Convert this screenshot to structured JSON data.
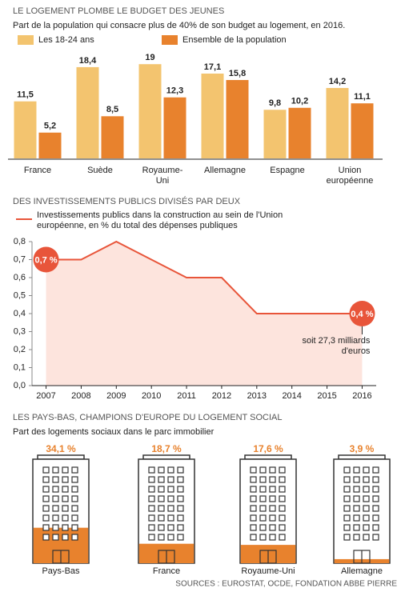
{
  "chart_data": [
    {
      "type": "bar",
      "title": "LE LOGEMENT PLOMBE LE BUDGET DES JEUNES",
      "subtitle": "Part de la population qui consacre plus de 40% de son budget au logement, en 2016.",
      "categories": [
        "France",
        "Suède",
        "Royaume-Uni",
        "Allemagne",
        "Espagne",
        "Union européenne"
      ],
      "series": [
        {
          "name": "Les 18-24 ans",
          "color": "#f3c46f",
          "values": [
            11.5,
            18.4,
            19,
            17.1,
            9.8,
            14.2
          ],
          "value_labels": [
            "11,5",
            "18,4",
            "19",
            "17,1",
            "9,8",
            "14,2"
          ]
        },
        {
          "name": "Ensemble de la population",
          "color": "#e8822d",
          "values": [
            5.2,
            8.5,
            12.3,
            15.8,
            10.2,
            11.1
          ],
          "value_labels": [
            "5,2",
            "8,5",
            "12,3",
            "15,8",
            "10,2",
            "11,1"
          ]
        }
      ]
    },
    {
      "type": "line",
      "title": "DES INVESTISSEMENTS PUBLICS DIVISÉS PAR DEUX",
      "x": [
        2007,
        2008,
        2009,
        2010,
        2011,
        2012,
        2013,
        2014,
        2015,
        2016
      ],
      "xticks": [
        2007,
        2008,
        2009,
        2010,
        2011,
        2012,
        2013,
        2014,
        2015,
        2016
      ],
      "xlim": [
        2006.6,
        2016.4
      ],
      "series": [
        {
          "name": "Investissements publics dans la construction au sein de l'Union européenne, en % du total des dépenses publiques",
          "color": "#e8553a",
          "area_color": "#fde4dd",
          "values": [
            0.7,
            0.7,
            0.8,
            0.7,
            0.6,
            0.6,
            0.4,
            0.4,
            0.4,
            0.4
          ],
          "value_labels": [
            "0,7 %",
            null,
            null,
            null,
            null,
            null,
            null,
            null,
            null,
            "0,4 %"
          ]
        }
      ],
      "ylim": [
        0,
        0.8
      ],
      "yticks": [
        {
          "value": 0,
          "label": "0,0"
        },
        {
          "value": 0.1,
          "label": "0,1"
        },
        {
          "value": 0.2,
          "label": "0,2"
        },
        {
          "value": 0.3,
          "label": "0,3"
        },
        {
          "value": 0.4,
          "label": "0,4"
        },
        {
          "value": 0.5,
          "label": "0,5"
        },
        {
          "value": 0.6,
          "label": "0,6"
        },
        {
          "value": 0.7,
          "label": "0,7"
        },
        {
          "value": 0.8,
          "label": "0,8"
        }
      ],
      "annotations": [
        "soit 27,3 milliards d'euros"
      ]
    },
    {
      "type": "pictogram",
      "title": "LES PAYS-BAS, CHAMPIONS D'EUROPE DU LOGEMENT SOCIAL",
      "subtitle": "Part des logements sociaux dans le parc immobilier",
      "categories": [
        "Pays-Bas",
        "France",
        "Royaume-Uni",
        "Allemagne"
      ],
      "values": [
        34.1,
        18.7,
        17.6,
        3.9
      ],
      "value_labels": [
        "34,1 %",
        "18,7 %",
        "17,6 %",
        "3,9 %"
      ],
      "color": "#e8822d",
      "source": "SOURCES : EUROSTAT, OCDE, FONDATION ABBE PIERRE"
    }
  ]
}
